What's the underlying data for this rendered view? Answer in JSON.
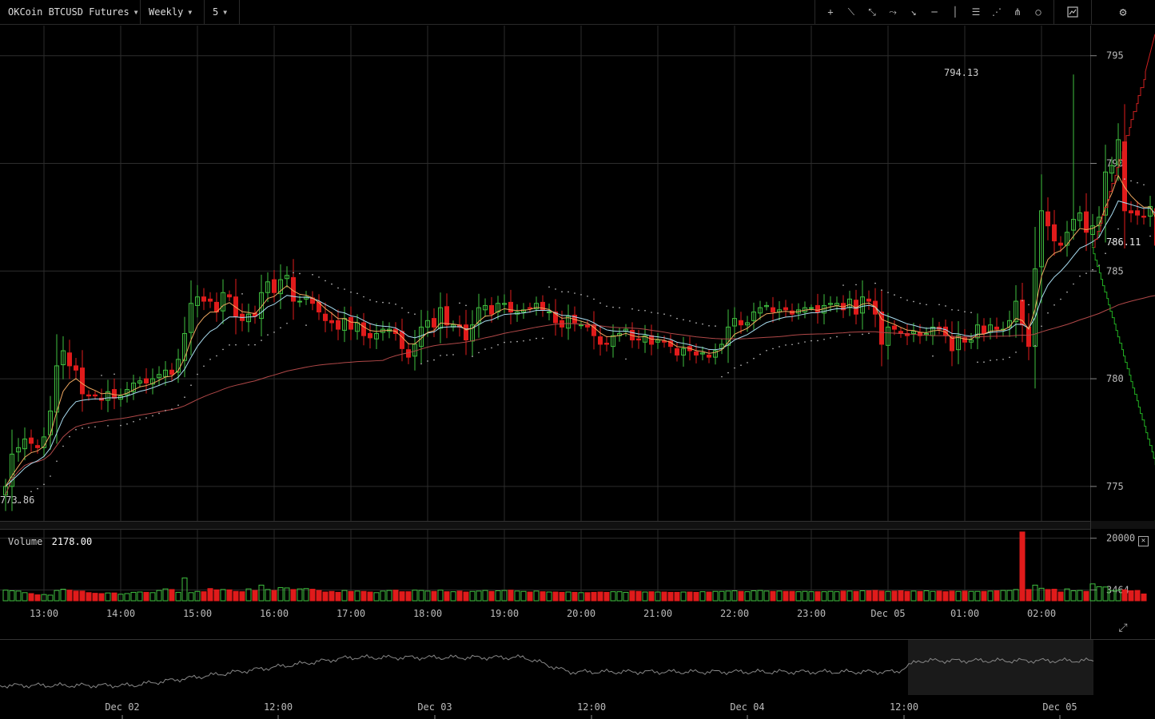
{
  "toolbar": {
    "symbol": "OKCoin BTCUSD Futures",
    "contract": "Weekly",
    "interval": "5",
    "tools": [
      {
        "name": "crosshair-tool-icon",
        "glyph": "+"
      },
      {
        "name": "trend-line-tool-icon",
        "glyph": "⟍"
      },
      {
        "name": "ray-tool-icon",
        "glyph": "⤡"
      },
      {
        "name": "curve-tool-icon",
        "glyph": "⤳"
      },
      {
        "name": "arrow-tool-icon",
        "glyph": "↘"
      },
      {
        "name": "horizontal-line-tool-icon",
        "glyph": "─"
      },
      {
        "name": "vertical-line-tool-icon",
        "glyph": "│"
      },
      {
        "name": "fibonacci-tool-icon",
        "glyph": "☰"
      },
      {
        "name": "fan-tool-icon",
        "glyph": "⋰"
      },
      {
        "name": "gann-fan-tool-icon",
        "glyph": "⋔"
      },
      {
        "name": "circle-tool-icon",
        "glyph": "○"
      }
    ],
    "indicator_icon": "indicator-chart-icon",
    "settings_icon": "gear-icon"
  },
  "price_labels": {
    "high": "794.13",
    "low": "773.86",
    "last": "786.11"
  },
  "volume": {
    "label": "Volume",
    "value": "2178.00",
    "close_icon": "close-icon"
  },
  "chart_data": {
    "type": "candlestick",
    "y_axis": {
      "ticks": [
        795,
        790,
        785,
        780,
        775
      ],
      "range": [
        773.4,
        796.4
      ]
    },
    "x_axis_ticks": [
      "13:00",
      "14:00",
      "15:00",
      "16:00",
      "17:00",
      "18:00",
      "19:00",
      "20:00",
      "21:00",
      "22:00",
      "23:00",
      "Dec 05",
      "01:00",
      "02:00"
    ],
    "volume_axis_ticks": [
      "20000",
      "3464"
    ],
    "volume_range": [
      0,
      23000
    ],
    "indicators": [
      "EMA fast",
      "EMA slow",
      "SMA long",
      "Parabolic SAR"
    ],
    "colors": {
      "up": "#3fbf3f",
      "down": "#e01b1b",
      "ema_fast": "#f0a860",
      "ema_slow": "#a8dcf0",
      "sma_long": "#b04848",
      "sar": "#cccccc",
      "depth_bid": "#22b022",
      "depth_ask": "#d02020"
    },
    "close_series": [
      775.0,
      776.5,
      776.8,
      777.2,
      777.0,
      776.8,
      777.3,
      778.5,
      780.6,
      781.3,
      780.6,
      780.4,
      779.3,
      779.2,
      779.2,
      779.0,
      779.4,
      779.1,
      779.2,
      779.5,
      779.8,
      779.9,
      779.8,
      780.0,
      780.2,
      780.4,
      780.2,
      780.9,
      782.1,
      783.5,
      783.8,
      783.6,
      783.6,
      783.1,
      784.0,
      783.8,
      782.9,
      782.7,
      783.0,
      782.9,
      784.0,
      784.5,
      784.0,
      784.6,
      784.8,
      783.6,
      783.6,
      783.8,
      783.5,
      783.1,
      782.7,
      782.6,
      782.3,
      782.8,
      782.3,
      782.6,
      782.0,
      781.9,
      782.1,
      782.3,
      782.3,
      782.1,
      781.4,
      781.0,
      781.6,
      782.4,
      782.7,
      782.4,
      783.3,
      782.5,
      782.5,
      782.4,
      781.8,
      782.5,
      783.3,
      783.4,
      783.0,
      783.5,
      783.5,
      783.1,
      783.1,
      783.2,
      783.3,
      783.5,
      783.2,
      783.1,
      782.6,
      782.4,
      782.9,
      782.6,
      782.5,
      782.4,
      782.0,
      781.6,
      781.6,
      782.0,
      782.1,
      782.3,
      781.8,
      781.8,
      782.0,
      781.6,
      781.8,
      781.7,
      781.5,
      781.1,
      781.4,
      781.3,
      781.1,
      781.2,
      781.0,
      781.3,
      781.6,
      782.4,
      782.8,
      782.5,
      782.6,
      783.1,
      783.3,
      783.4,
      783.1,
      783.2,
      783.2,
      783.0,
      783.2,
      783.3,
      783.3,
      783.1,
      783.4,
      783.5,
      783.5,
      783.2,
      783.7,
      783.0,
      783.8,
      783.6,
      783.0,
      781.6,
      782.4,
      782.3,
      782.1,
      782.0,
      782.2,
      782.0,
      782.1,
      782.4,
      782.3,
      782.0,
      781.3,
      782.0,
      781.7,
      781.8,
      782.5,
      782.1,
      782.5,
      782.3,
      782.3,
      782.7,
      783.6,
      782.5,
      781.5,
      785.1,
      787.8,
      787.1,
      786.4,
      786.2,
      786.8,
      787.4,
      787.7,
      786.8,
      787.1,
      787.5,
      789.6,
      789.9,
      791.1,
      787.8,
      787.7,
      787.6,
      787.5,
      788.0,
      786.2
    ],
    "volume_series": [
      3400,
      3200,
      3100,
      2600,
      2300,
      1900,
      2000,
      1800,
      3300,
      3700,
      3400,
      3100,
      3100,
      2600,
      2400,
      2300,
      2500,
      2500,
      2100,
      2300,
      2700,
      2800,
      2700,
      2600,
      3300,
      3800,
      3600,
      2700,
      7300,
      2600,
      3000,
      2900,
      3900,
      3500,
      3600,
      3500,
      3000,
      2900,
      3800,
      3300,
      5000,
      3600,
      3300,
      4200,
      4100,
      3600,
      3800,
      3900,
      3700,
      3300,
      2800,
      3000,
      2700,
      3300,
      3000,
      3100,
      3000,
      2800,
      2600,
      3100,
      3300,
      3400,
      2900,
      2900,
      3400,
      3300,
      3100,
      3000,
      3400,
      2900,
      2900,
      3100,
      2800,
      3000,
      3100,
      3300,
      3000,
      3200,
      3300,
      3400,
      3100,
      3000,
      2800,
      3100,
      2900,
      2800,
      2800,
      2700,
      2800,
      2700,
      2600,
      2600,
      2700,
      2800,
      2700,
      2900,
      2900,
      2700,
      3100,
      3000,
      2800,
      2900,
      2800,
      2800,
      2700,
      2700,
      2800,
      2800,
      2700,
      2900,
      2800,
      3000,
      3000,
      3100,
      3200,
      3000,
      2900,
      3200,
      3300,
      3100,
      3000,
      3100,
      3000,
      3000,
      2900,
      3000,
      2900,
      2900,
      2900,
      3000,
      2900,
      3100,
      3100,
      3000,
      3200,
      3200,
      3300,
      3100,
      3000,
      3100,
      3200,
      3000,
      3100,
      3000,
      3200,
      3000,
      3100,
      2900,
      3100,
      3000,
      3100,
      3000,
      3000,
      3000,
      3100,
      3200,
      3300,
      3300,
      3600,
      22000,
      3600,
      5000,
      4000,
      3600,
      3700,
      2800,
      3800,
      3200,
      3300,
      3000,
      5400,
      4500,
      4400,
      3300,
      3400,
      3500,
      3200,
      3300,
      2178
    ],
    "depth_curve": "ask-bid"
  },
  "navigator": {
    "dates": [
      "Dec 02",
      "12:00",
      "Dec 03",
      "12:00",
      "Dec 04",
      "12:00",
      "Dec 05"
    ]
  },
  "fullscreen_icon": "expand-icon"
}
